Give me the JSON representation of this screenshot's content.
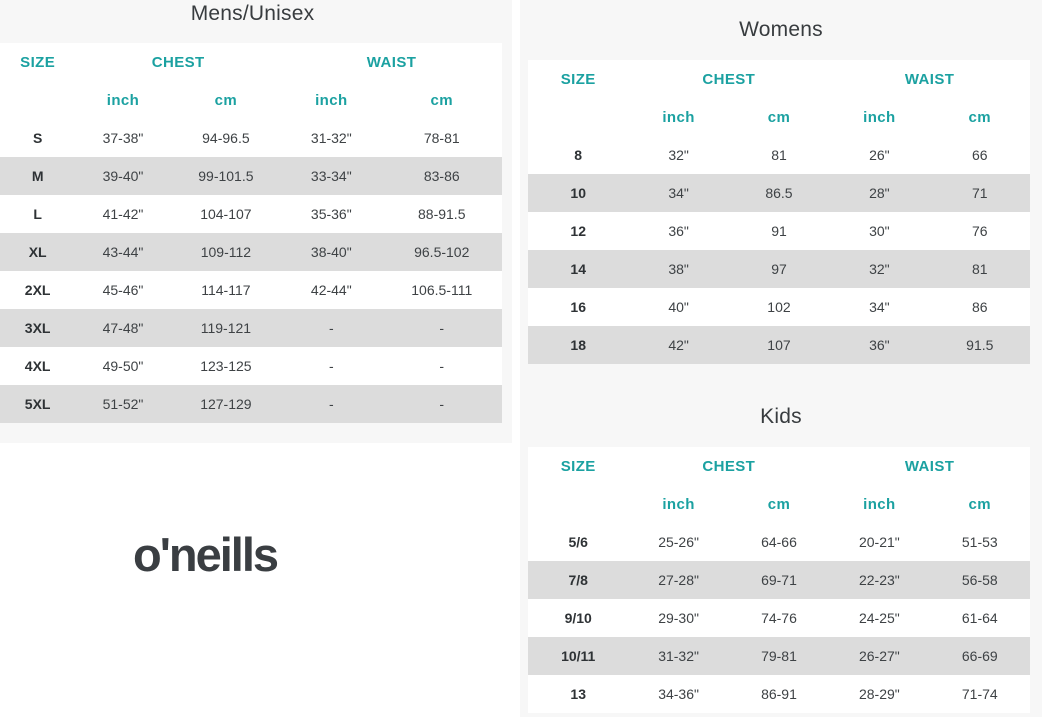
{
  "colors": {
    "accent": "#1ba1a1",
    "stripe": "#dcdcdc",
    "panel_bg": "#f7f7f7",
    "text": "#3e4245",
    "title": "#383c3f",
    "logo": "#3a3e42"
  },
  "logo": {
    "text": "o'neills"
  },
  "sections": {
    "mens": {
      "title": "Mens/Unisex",
      "headers": {
        "size": "SIZE",
        "chest": "CHEST",
        "waist": "WAIST",
        "inch": "inch",
        "cm": "cm"
      },
      "rows": [
        [
          "S",
          "37-38\"",
          "94-96.5",
          "31-32\"",
          "78-81"
        ],
        [
          "M",
          "39-40\"",
          "99-101.5",
          "33-34\"",
          "83-86"
        ],
        [
          "L",
          "41-42\"",
          "104-107",
          "35-36\"",
          "88-91.5"
        ],
        [
          "XL",
          "43-44\"",
          "109-112",
          "38-40\"",
          "96.5-102"
        ],
        [
          "2XL",
          "45-46\"",
          "114-117",
          "42-44\"",
          "106.5-111"
        ],
        [
          "3XL",
          "47-48\"",
          "119-121",
          "-",
          "-"
        ],
        [
          "4XL",
          "49-50\"",
          "123-125",
          "-",
          "-"
        ],
        [
          "5XL",
          "51-52\"",
          "127-129",
          "-",
          "-"
        ]
      ]
    },
    "womens": {
      "title": "Womens",
      "headers": {
        "size": "SIZE",
        "chest": "CHEST",
        "waist": "WAIST",
        "inch": "inch",
        "cm": "cm"
      },
      "rows": [
        [
          "8",
          "32\"",
          "81",
          "26\"",
          "66"
        ],
        [
          "10",
          "34\"",
          "86.5",
          "28\"",
          "71"
        ],
        [
          "12",
          "36\"",
          "91",
          "30\"",
          "76"
        ],
        [
          "14",
          "38\"",
          "97",
          "32\"",
          "81"
        ],
        [
          "16",
          "40\"",
          "102",
          "34\"",
          "86"
        ],
        [
          "18",
          "42\"",
          "107",
          "36\"",
          "91.5"
        ]
      ]
    },
    "kids": {
      "title": "Kids",
      "headers": {
        "size": "SIZE",
        "chest": "CHEST",
        "waist": "WAIST",
        "inch": "inch",
        "cm": "cm"
      },
      "rows": [
        [
          "5/6",
          "25-26\"",
          "64-66",
          "20-21\"",
          "51-53"
        ],
        [
          "7/8",
          "27-28\"",
          "69-71",
          "22-23\"",
          "56-58"
        ],
        [
          "9/10",
          "29-30\"",
          "74-76",
          "24-25\"",
          "61-64"
        ],
        [
          "10/11",
          "31-32\"",
          "79-81",
          "26-27\"",
          "66-69"
        ],
        [
          "13",
          "34-36\"",
          "86-91",
          "28-29\"",
          "71-74"
        ]
      ]
    }
  }
}
